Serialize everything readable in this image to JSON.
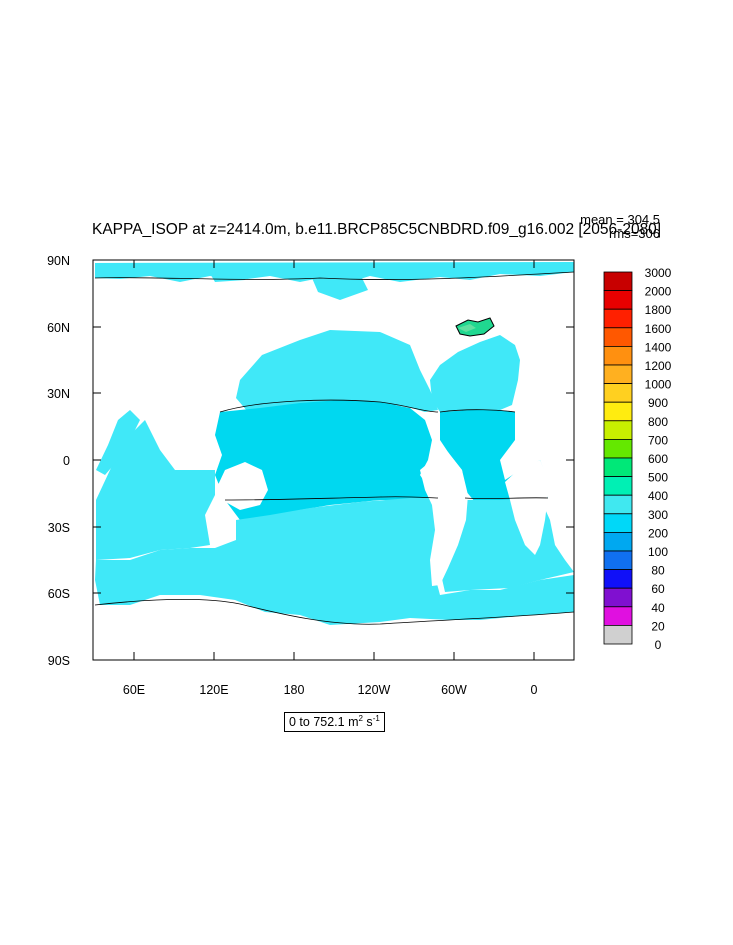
{
  "header": {
    "title": "KAPPA_ISOP at z=2414.0m, b.e11.BRCP85C5CNBDRD.f09_g16.002 [2056-2080]",
    "mean": "mean = 304.5",
    "rms": "rms=306"
  },
  "map": {
    "y_axis_labels": [
      "90N",
      "60N",
      "30N",
      "0",
      "30S",
      "60S",
      "90S"
    ],
    "x_axis_labels": [
      "60E",
      "120E",
      "180",
      "120W",
      "60W",
      "0"
    ],
    "land_color": "#ffffff",
    "ocean_color_dominant": "#40e8f8",
    "ocean_color_band": "#00d8f0"
  },
  "colorbar": {
    "levels": [
      "3000",
      "2000",
      "1800",
      "1600",
      "1400",
      "1200",
      "1000",
      "900",
      "800",
      "700",
      "600",
      "500",
      "400",
      "300",
      "200",
      "100",
      "80",
      "60",
      "40",
      "20",
      "0"
    ],
    "colors": [
      "#c80000",
      "#e80000",
      "#ff2000",
      "#ff5800",
      "#ff9010",
      "#ffb020",
      "#ffd020",
      "#ffec10",
      "#c8f000",
      "#64e800",
      "#00e878",
      "#00f0b4",
      "#40e8f0",
      "#00d8f8",
      "#00a8f0",
      "#1070f0",
      "#1010f8",
      "#8010d0",
      "#e010e0",
      "#d0d0d0"
    ]
  },
  "range": {
    "prefix": "0 to 752.1 m",
    "exp1": "2",
    "mid": " s",
    "exp2": "-1"
  }
}
